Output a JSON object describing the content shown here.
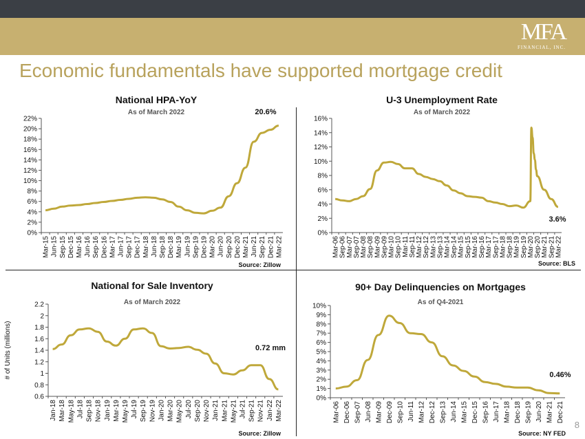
{
  "header": {
    "logo": "MFA",
    "logo_sub": "FINANCIAL, INC.",
    "title": "Economic fundamentals have supported mortgage credit",
    "page_number": "8"
  },
  "colors": {
    "line": "#bfa83a",
    "gold_band": "#c7b070",
    "top_bar": "#3b3f45",
    "title": "#b8a25c"
  },
  "chart_data": [
    {
      "id": "hpa",
      "type": "line",
      "title": "National HPA-YoY",
      "subtitle": "As of March 2022",
      "callout": "20.6%",
      "source": "Source: Zillow",
      "ylabel": "",
      "ylim": [
        0,
        0.22
      ],
      "y_ticks": [
        "0%",
        "2%",
        "4%",
        "6%",
        "8%",
        "10%",
        "12%",
        "14%",
        "16%",
        "18%",
        "20%",
        "22%"
      ],
      "categories": [
        "Mar-15",
        "Jun-15",
        "Sep-15",
        "Dec-15",
        "Mar-16",
        "Jun-16",
        "Sep-16",
        "Dec-16",
        "Mar-17",
        "Jun-17",
        "Sep-17",
        "Dec-17",
        "Mar-18",
        "Jun-18",
        "Sep-18",
        "Dec-18",
        "Mar-19",
        "Jun-19",
        "Sep-19",
        "Dec-19",
        "Mar-20",
        "Jun-20",
        "Sep-20",
        "Dec-20",
        "Mar-21",
        "Jun-21",
        "Sep-21",
        "Dec-21",
        "Mar-22"
      ],
      "values": [
        0.043,
        0.046,
        0.05,
        0.052,
        0.053,
        0.055,
        0.057,
        0.059,
        0.061,
        0.063,
        0.065,
        0.067,
        0.068,
        0.067,
        0.064,
        0.059,
        0.05,
        0.043,
        0.038,
        0.037,
        0.042,
        0.048,
        0.07,
        0.095,
        0.125,
        0.175,
        0.192,
        0.198,
        0.206
      ]
    },
    {
      "id": "unemployment",
      "type": "line",
      "title": "U-3 Unemployment Rate",
      "subtitle": "As of March 2022",
      "callout": "3.6%",
      "source": "Source: BLS",
      "ylabel": "",
      "ylim": [
        0,
        0.16
      ],
      "y_ticks": [
        "0%",
        "2%",
        "4%",
        "6%",
        "8%",
        "10%",
        "12%",
        "14%",
        "16%"
      ],
      "categories": [
        "Mar-06",
        "Sep-06",
        "Mar-07",
        "Sep-07",
        "Mar-08",
        "Sep-08",
        "Mar-09",
        "Sep-09",
        "Mar-10",
        "Sep-10",
        "Mar-11",
        "Sep-11",
        "Mar-12",
        "Sep-12",
        "Mar-13",
        "Sep-13",
        "Mar-14",
        "Sep-14",
        "Mar-15",
        "Sep-15",
        "Mar-16",
        "Sep-16",
        "Mar-17",
        "Sep-17",
        "Mar-18",
        "Sep-18",
        "Mar-19",
        "Sep-19",
        "Mar-20",
        "Sep-20",
        "Mar-21",
        "Sep-21",
        "Mar-22"
      ],
      "values": [
        0.047,
        0.045,
        0.044,
        0.047,
        0.051,
        0.061,
        0.087,
        0.098,
        0.099,
        0.096,
        0.09,
        0.09,
        0.082,
        0.078,
        0.075,
        0.072,
        0.066,
        0.059,
        0.055,
        0.051,
        0.05,
        0.049,
        0.044,
        0.042,
        0.04,
        0.037,
        0.038,
        0.035,
        0.044,
        0.079,
        0.06,
        0.047,
        0.036
      ],
      "spike": {
        "after_index": 28,
        "values": [
          0.147,
          0.133,
          0.111,
          0.102,
          0.088
        ]
      }
    },
    {
      "id": "inventory",
      "type": "line",
      "title": "National for Sale Inventory",
      "subtitle": "As of March 2022",
      "callout": "0.72 mm",
      "source": "Source: Zillow",
      "ylabel": "# of Units (millions)",
      "ylim": [
        0.6,
        2.2
      ],
      "y_ticks": [
        "0.6",
        "0.8",
        "1",
        "1.2",
        "1.4",
        "1.6",
        "1.8",
        "2",
        "2.2"
      ],
      "categories": [
        "Jan-18",
        "Mar-18",
        "May-18",
        "Jul-18",
        "Sep-18",
        "Nov-18",
        "Jan-19",
        "Mar-19",
        "May-19",
        "Jul-19",
        "Sep-19",
        "Nov-19",
        "Jan-20",
        "Mar-20",
        "May-20",
        "Jul-20",
        "Sep-20",
        "Nov-20",
        "Jan-21",
        "Mar-21",
        "May-21",
        "Jul-21",
        "Sep-21",
        "Nov-21",
        "Jan-22",
        "Mar-22"
      ],
      "values": [
        1.42,
        1.5,
        1.66,
        1.76,
        1.78,
        1.72,
        1.55,
        1.48,
        1.6,
        1.76,
        1.78,
        1.7,
        1.47,
        1.43,
        1.44,
        1.46,
        1.41,
        1.34,
        1.17,
        1.0,
        0.98,
        1.05,
        1.14,
        1.14,
        0.9,
        0.72
      ]
    },
    {
      "id": "delinquency",
      "type": "line",
      "title": "90+ Day Delinquencies on Mortgages",
      "subtitle": "As of Q4-2021",
      "callout": "0.46%",
      "source": "Source: NY FED",
      "ylabel": "",
      "ylim": [
        0,
        0.1
      ],
      "y_ticks": [
        "0%",
        "1%",
        "2%",
        "3%",
        "4%",
        "5%",
        "6%",
        "7%",
        "8%",
        "9%",
        "10%"
      ],
      "categories": [
        "Mar-06",
        "Dec-06",
        "Sep-07",
        "Jun-08",
        "Mar-09",
        "Dec-09",
        "Sep-10",
        "Jun-11",
        "Mar-12",
        "Dec-12",
        "Sep-13",
        "Jun-14",
        "Mar-15",
        "Dec-15",
        "Sep-16",
        "Jun-17",
        "Mar-18",
        "Dec-18",
        "Sep-19",
        "Jun-20",
        "Mar-21",
        "Dec-21"
      ],
      "values": [
        0.01,
        0.012,
        0.019,
        0.041,
        0.068,
        0.089,
        0.081,
        0.07,
        0.069,
        0.06,
        0.045,
        0.035,
        0.029,
        0.023,
        0.017,
        0.015,
        0.012,
        0.011,
        0.011,
        0.008,
        0.005,
        0.0046
      ]
    }
  ]
}
